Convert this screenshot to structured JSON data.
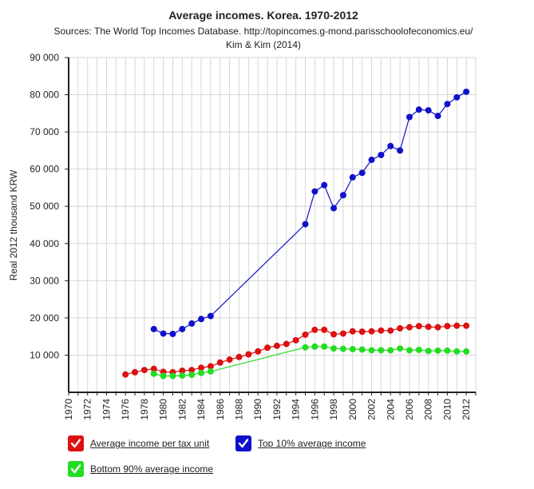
{
  "chart_data": {
    "type": "line",
    "title": "Average incomes. Korea. 1970-2012",
    "subtitle_lines": [
      "Sources: The World Top Incomes Database. http://topincomes.g-mond.parisschoolofeconomics.eu/",
      "Kim & Kim (2014)"
    ],
    "ylabel": "Real 2012 thousand KRW",
    "xlabel": "",
    "xlim": [
      1970,
      2013
    ],
    "ylim": [
      0,
      90000
    ],
    "x_ticks": [
      "1970",
      "1972",
      "1974",
      "1976",
      "1978",
      "1980",
      "1982",
      "1984",
      "1986",
      "1988",
      "1990",
      "1992",
      "1994",
      "1996",
      "1998",
      "2000",
      "2002",
      "2004",
      "2006",
      "2008",
      "2010",
      "2012"
    ],
    "y_ticks": [
      "10 000",
      "20 000",
      "30 000",
      "40 000",
      "50 000",
      "60 000",
      "70 000",
      "80 000",
      "90 000"
    ],
    "grid": true,
    "series": [
      {
        "name": "Top 10% average income",
        "color": "#1010cc",
        "x": [
          1979,
          1980,
          1981,
          1982,
          1983,
          1984,
          1985,
          1995,
          1996,
          1997,
          1998,
          1999,
          2000,
          2001,
          2002,
          2003,
          2004,
          2005,
          2006,
          2007,
          2008,
          2009,
          2010,
          2011,
          2012
        ],
        "values": [
          17000,
          15800,
          15700,
          17000,
          18500,
          19700,
          20500,
          45200,
          54000,
          55700,
          49500,
          53000,
          57800,
          59000,
          62500,
          63800,
          66200,
          65000,
          74000,
          76000,
          75800,
          74300,
          77500,
          79300,
          80800
        ]
      },
      {
        "name": "Average income per tax unit",
        "color": "#dd1111",
        "x": [
          1976,
          1977,
          1978,
          1979,
          1980,
          1981,
          1982,
          1983,
          1984,
          1985,
          1986,
          1987,
          1988,
          1989,
          1990,
          1991,
          1992,
          1993,
          1994,
          1995,
          1996,
          1997,
          1998,
          1999,
          2000,
          2001,
          2002,
          2003,
          2004,
          2005,
          2006,
          2007,
          2008,
          2009,
          2010,
          2011,
          2012
        ],
        "values": [
          4800,
          5400,
          6000,
          6300,
          5500,
          5400,
          5800,
          6000,
          6600,
          7000,
          8000,
          8800,
          9500,
          10200,
          11000,
          12000,
          12500,
          13000,
          14000,
          15500,
          16800,
          16800,
          15600,
          15800,
          16400,
          16300,
          16400,
          16600,
          16600,
          17200,
          17500,
          17800,
          17600,
          17500,
          17800,
          17900,
          17900
        ]
      },
      {
        "name": "Bottom 90% average income",
        "color": "#22dd22",
        "x": [
          1979,
          1980,
          1981,
          1982,
          1983,
          1984,
          1985,
          1995,
          1996,
          1997,
          1998,
          1999,
          2000,
          2001,
          2002,
          2003,
          2004,
          2005,
          2006,
          2007,
          2008,
          2009,
          2010,
          2011,
          2012
        ],
        "values": [
          5000,
          4400,
          4400,
          4500,
          4700,
          5200,
          5600,
          12100,
          12300,
          12300,
          11800,
          11700,
          11600,
          11500,
          11300,
          11300,
          11300,
          11800,
          11300,
          11400,
          11100,
          11200,
          11200,
          11000,
          11000
        ]
      }
    ],
    "legend": [
      {
        "label": "Average income per tax unit",
        "color": "#dd1111"
      },
      {
        "label": "Top 10% average income",
        "color": "#1010cc"
      },
      {
        "label": "Bottom 90% average income",
        "color": "#22dd22"
      }
    ]
  }
}
